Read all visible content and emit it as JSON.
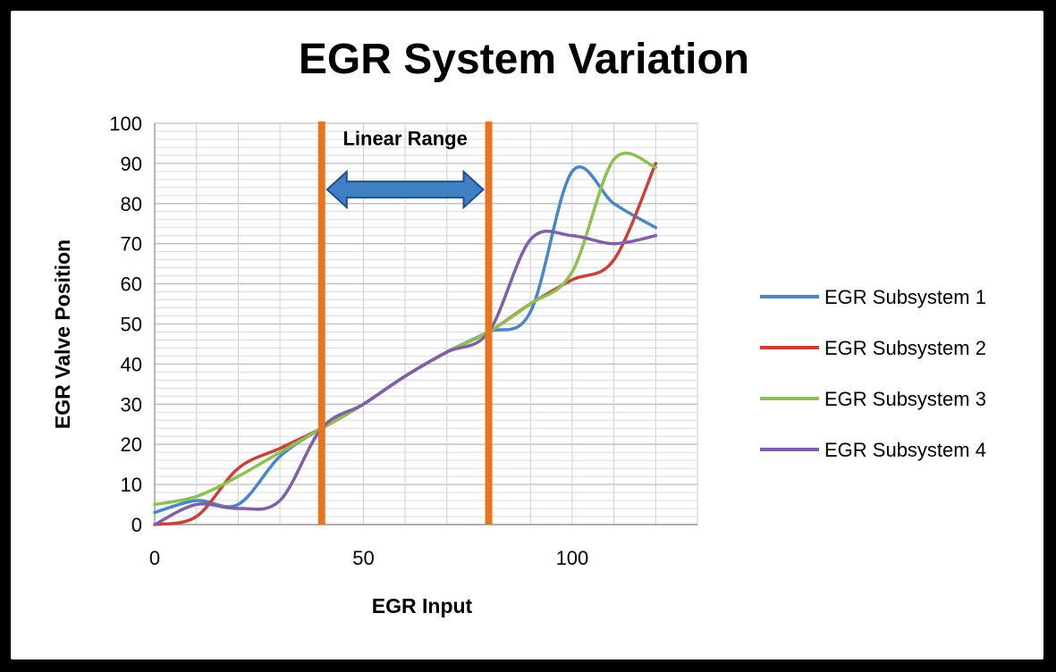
{
  "chart_data": {
    "type": "line",
    "title": "EGR System Variation",
    "xlabel": "EGR Input",
    "ylabel": "EGR Valve Position",
    "xlim": [
      0,
      130
    ],
    "ylim": [
      0,
      100
    ],
    "x_ticks": [
      0,
      50,
      100
    ],
    "y_ticks": [
      0,
      10,
      20,
      30,
      40,
      50,
      60,
      70,
      80,
      90,
      100
    ],
    "grid": true,
    "legend_position": "right",
    "annotations": {
      "linear_range_label": "Linear Range",
      "linear_range": [
        40,
        80
      ]
    },
    "colors": {
      "annotation_lines": "#e8741e",
      "arrow_fill": "#3f7fc4",
      "arrow_stroke": "#1f4f8f",
      "grid": "#c8c8c8"
    },
    "series": [
      {
        "name": "EGR Subsystem 1",
        "color": "#4a86c5",
        "x": [
          0,
          10,
          20,
          30,
          40,
          50,
          60,
          70,
          80,
          90,
          100,
          110,
          120
        ],
        "y": [
          3,
          6,
          5,
          17,
          24,
          30,
          37,
          43,
          48,
          53,
          88,
          80,
          74
        ]
      },
      {
        "name": "EGR Subsystem 2",
        "color": "#c9413b",
        "x": [
          0,
          10,
          20,
          30,
          40,
          50,
          60,
          70,
          80,
          90,
          100,
          110,
          120
        ],
        "y": [
          0,
          2,
          14,
          19,
          24,
          30,
          37,
          43,
          48,
          55,
          61,
          66,
          90
        ]
      },
      {
        "name": "EGR Subsystem 3",
        "color": "#8cc152",
        "x": [
          0,
          10,
          20,
          30,
          40,
          50,
          60,
          70,
          80,
          90,
          100,
          110,
          120
        ],
        "y": [
          5,
          7,
          12,
          18,
          24,
          30,
          37,
          43,
          48,
          55,
          63,
          91,
          89
        ]
      },
      {
        "name": "EGR Subsystem 4",
        "color": "#7f5fa8",
        "x": [
          0,
          10,
          20,
          30,
          40,
          50,
          60,
          70,
          80,
          90,
          100,
          110,
          120
        ],
        "y": [
          0,
          5,
          4,
          6,
          24,
          30,
          37,
          43,
          48,
          71,
          72,
          70,
          72
        ]
      }
    ]
  }
}
